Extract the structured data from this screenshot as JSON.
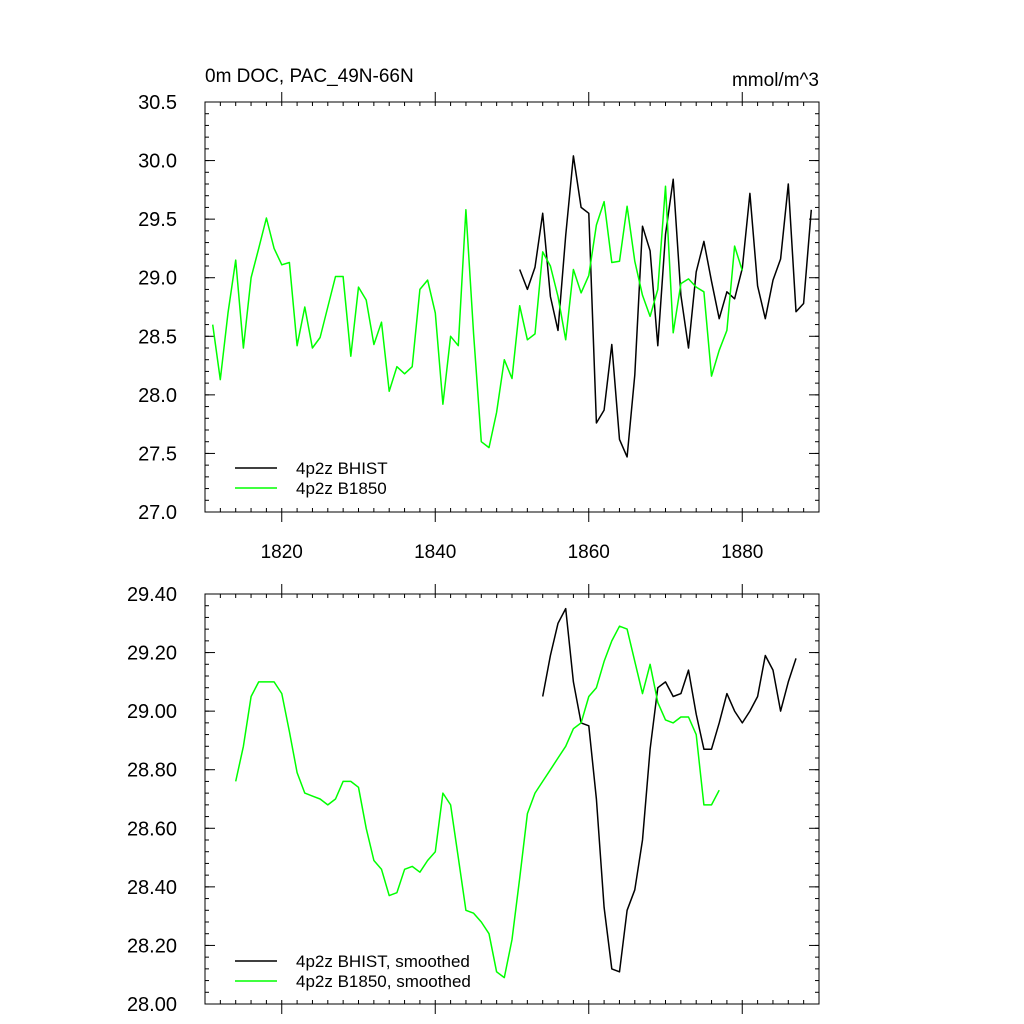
{
  "chart_data": [
    {
      "type": "line",
      "title": "0m DOC, PAC_49N-66N",
      "units_label": "mmol/m^3",
      "xlim": [
        1810,
        1890
      ],
      "ylim": [
        27.0,
        30.5
      ],
      "x_ticks": [
        1820,
        1840,
        1860,
        1880
      ],
      "x_tick_labels": [
        "1820",
        "1840",
        "1860",
        "1880"
      ],
      "y_ticks": [
        27.0,
        27.5,
        28.0,
        28.5,
        29.0,
        29.5,
        30.0,
        30.5
      ],
      "y_tick_labels": [
        "27.0",
        "27.5",
        "28.0",
        "28.5",
        "29.0",
        "29.5",
        "30.0",
        "30.5"
      ],
      "legend_position": "bottom-left",
      "series": [
        {
          "name": "4p2z BHIST",
          "color": "#000000",
          "x": [
            1851,
            1852,
            1853,
            1854,
            1855,
            1856,
            1857,
            1858,
            1859,
            1860,
            1861,
            1862,
            1863,
            1864,
            1865,
            1866,
            1867,
            1868,
            1869,
            1870,
            1871,
            1872,
            1873,
            1874,
            1875,
            1876,
            1877,
            1878,
            1879,
            1880,
            1881,
            1882,
            1883,
            1884,
            1885,
            1886,
            1887,
            1888,
            1889
          ],
          "y": [
            29.07,
            28.9,
            29.09,
            29.55,
            28.84,
            28.55,
            29.36,
            30.04,
            29.6,
            29.55,
            27.76,
            27.87,
            28.43,
            27.62,
            27.47,
            28.17,
            29.44,
            29.23,
            28.42,
            29.37,
            29.84,
            28.85,
            28.4,
            29.05,
            29.31,
            28.97,
            28.65,
            28.88,
            28.82,
            29.08,
            29.72,
            28.93,
            28.65,
            28.98,
            29.16,
            29.8,
            28.71,
            28.78,
            29.58
          ]
        },
        {
          "name": "4p2z B1850",
          "color": "#00ff00",
          "x": [
            1811,
            1812,
            1813,
            1814,
            1815,
            1816,
            1817,
            1818,
            1819,
            1820,
            1821,
            1822,
            1823,
            1824,
            1825,
            1826,
            1827,
            1828,
            1829,
            1830,
            1831,
            1832,
            1833,
            1834,
            1835,
            1836,
            1837,
            1838,
            1839,
            1840,
            1841,
            1842,
            1843,
            1844,
            1845,
            1846,
            1847,
            1848,
            1849,
            1850,
            1851,
            1852,
            1853,
            1854,
            1855,
            1856,
            1857,
            1858,
            1859,
            1860,
            1861,
            1862,
            1863,
            1864,
            1865,
            1866,
            1867,
            1868,
            1869,
            1870,
            1871,
            1872,
            1873,
            1874,
            1875,
            1876,
            1877,
            1878,
            1879,
            1880
          ],
          "y": [
            28.6,
            28.13,
            28.7,
            29.15,
            28.4,
            29.0,
            29.25,
            29.51,
            29.25,
            29.11,
            29.13,
            28.42,
            28.75,
            28.4,
            28.49,
            28.75,
            29.01,
            29.01,
            28.33,
            28.92,
            28.81,
            28.43,
            28.62,
            28.03,
            28.24,
            28.18,
            28.24,
            28.9,
            28.98,
            28.7,
            27.92,
            28.5,
            28.42,
            29.58,
            28.52,
            27.6,
            27.55,
            27.85,
            28.3,
            28.14,
            28.76,
            28.47,
            28.52,
            29.22,
            29.1,
            28.84,
            28.47,
            29.07,
            28.87,
            29.02,
            29.45,
            29.65,
            29.13,
            29.14,
            29.61,
            29.14,
            28.85,
            28.67,
            28.9,
            29.78,
            28.53,
            28.95,
            28.99,
            28.92,
            28.88,
            28.16,
            28.38,
            28.55,
            29.27,
            29.06
          ]
        }
      ]
    },
    {
      "type": "line",
      "title": "",
      "xlim": [
        1810,
        1890
      ],
      "ylim": [
        28.0,
        29.4
      ],
      "x_ticks": [
        1820,
        1840,
        1860,
        1880
      ],
      "y_ticks": [
        28.0,
        28.2,
        28.4,
        28.6,
        28.8,
        29.0,
        29.2,
        29.4
      ],
      "y_tick_labels": [
        "28.00",
        "28.20",
        "28.40",
        "28.60",
        "28.80",
        "29.00",
        "29.20",
        "29.40"
      ],
      "legend_position": "bottom-left",
      "series": [
        {
          "name": "4p2z BHIST, smoothed",
          "color": "#000000",
          "x": [
            1854,
            1855,
            1856,
            1857,
            1858,
            1859,
            1860,
            1861,
            1862,
            1863,
            1864,
            1865,
            1866,
            1867,
            1868,
            1869,
            1870,
            1871,
            1872,
            1873,
            1874,
            1875,
            1876,
            1877,
            1878,
            1879,
            1880,
            1881,
            1882,
            1883,
            1884,
            1885,
            1886,
            1887
          ],
          "y": [
            29.05,
            29.19,
            29.3,
            29.35,
            29.1,
            28.96,
            28.95,
            28.7,
            28.33,
            28.12,
            28.11,
            28.32,
            28.39,
            28.56,
            28.87,
            29.08,
            29.1,
            29.05,
            29.06,
            29.14,
            28.99,
            28.87,
            28.87,
            28.96,
            29.06,
            29.0,
            28.96,
            29.0,
            29.05,
            29.19,
            29.14,
            29.0,
            29.1,
            29.18
          ]
        },
        {
          "name": "4p2z B1850, smoothed",
          "color": "#00ff00",
          "x": [
            1814,
            1815,
            1816,
            1817,
            1818,
            1819,
            1820,
            1821,
            1822,
            1823,
            1824,
            1825,
            1826,
            1827,
            1828,
            1829,
            1830,
            1831,
            1832,
            1833,
            1834,
            1835,
            1836,
            1837,
            1838,
            1839,
            1840,
            1841,
            1842,
            1843,
            1844,
            1845,
            1846,
            1847,
            1848,
            1849,
            1850,
            1851,
            1852,
            1853,
            1854,
            1855,
            1856,
            1857,
            1858,
            1859,
            1860,
            1861,
            1862,
            1863,
            1864,
            1865,
            1866,
            1867,
            1868,
            1869,
            1870,
            1871,
            1872,
            1873,
            1874,
            1875,
            1876,
            1877
          ],
          "y": [
            28.76,
            28.88,
            29.05,
            29.1,
            29.1,
            29.1,
            29.06,
            28.93,
            28.79,
            28.72,
            28.71,
            28.7,
            28.68,
            28.7,
            28.76,
            28.76,
            28.74,
            28.6,
            28.49,
            28.46,
            28.37,
            28.38,
            28.46,
            28.47,
            28.45,
            28.49,
            28.52,
            28.72,
            28.68,
            28.5,
            28.32,
            28.31,
            28.28,
            28.24,
            28.11,
            28.09,
            28.22,
            28.43,
            28.65,
            28.72,
            28.76,
            28.8,
            28.84,
            28.88,
            28.94,
            28.96,
            29.05,
            29.08,
            29.17,
            29.24,
            29.29,
            29.28,
            29.17,
            29.06,
            29.16,
            29.03,
            28.97,
            28.96,
            28.98,
            28.98,
            28.92,
            28.68,
            28.68,
            28.73
          ]
        }
      ]
    }
  ]
}
